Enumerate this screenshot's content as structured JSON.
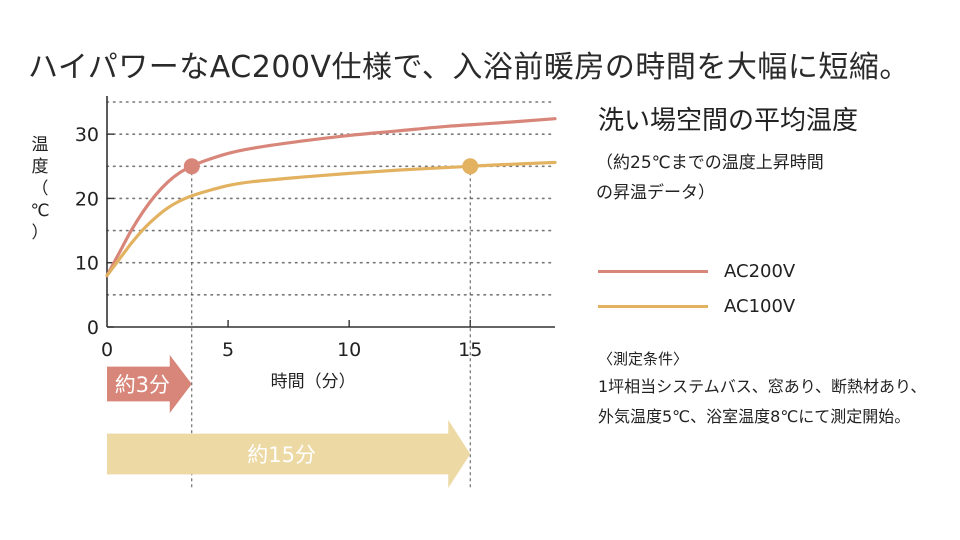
{
  "headline": "ハイパワーなAC200V仕様で、入浴前暖房の時間を大幅に短縮。",
  "panel": {
    "title": "洗い場空間の平均温度",
    "subtitle_line1": "（約25℃までの温度上昇時間",
    "subtitle_line2": "の昇温データ）"
  },
  "conditions": {
    "title": "〈測定条件〉",
    "body": "1坪相当システムバス、窓あり、断熱材あり、外気温度5℃、浴室温度8℃にて測定開始。"
  },
  "chart_data": {
    "type": "line",
    "ylabel": "温度（℃）",
    "xlabel": "時間（分）",
    "xlim": [
      0,
      18.5
    ],
    "ylim": [
      0,
      35
    ],
    "x_ticks": [
      0,
      5,
      10,
      15
    ],
    "y_ticks": [
      0,
      10,
      20,
      30
    ],
    "grid": "horizontal-dotted-every-5",
    "legend": "right",
    "series": [
      {
        "name": "AC200V",
        "color": "#d8857a",
        "x": [
          0,
          0.5,
          1,
          1.5,
          2,
          2.5,
          3,
          3.5,
          4,
          5,
          6,
          8,
          10,
          12,
          14,
          16,
          18.5
        ],
        "y": [
          8,
          11.5,
          15,
          18,
          20.5,
          22.5,
          24,
          25,
          25.8,
          27,
          27.8,
          28.9,
          29.8,
          30.5,
          31.2,
          31.7,
          32.4
        ],
        "marker": {
          "x": 3.5,
          "y": 25
        }
      },
      {
        "name": "AC100V",
        "color": "#e2b260",
        "x": [
          0,
          0.5,
          1,
          1.5,
          2,
          2.5,
          3,
          3.5,
          4,
          5,
          6,
          8,
          10,
          12,
          14,
          15,
          16,
          18.5
        ],
        "y": [
          8,
          10.5,
          13,
          15.2,
          17,
          18.5,
          19.6,
          20.4,
          21,
          22,
          22.6,
          23.3,
          23.9,
          24.4,
          24.8,
          25,
          25.2,
          25.6
        ],
        "marker": {
          "x": 15,
          "y": 25
        }
      }
    ],
    "annotations": [
      {
        "label": "約3分",
        "x_start": 0,
        "x_end": 3.5,
        "color": "#d8857a"
      },
      {
        "label": "約15分",
        "x_start": 0,
        "x_end": 15,
        "color": "#ecd9a4"
      }
    ]
  }
}
